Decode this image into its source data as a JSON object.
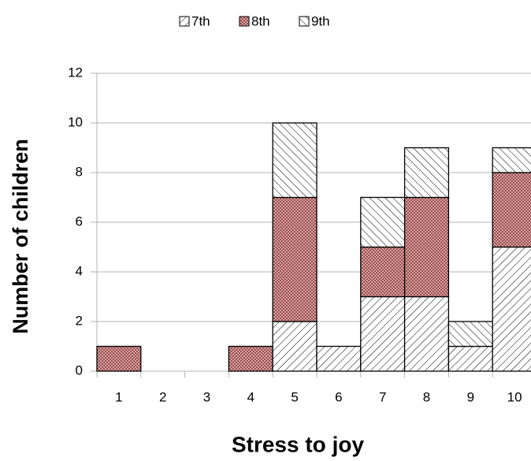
{
  "chart_data": {
    "type": "bar",
    "stacked": true,
    "x_label": "Stress to joy",
    "y_label": "Number of children",
    "categories": [
      "1",
      "2",
      "3",
      "4",
      "5",
      "6",
      "7",
      "8",
      "9",
      "10"
    ],
    "series": [
      {
        "name": "7th",
        "color": "#ffffff",
        "values": [
          0,
          0,
          0,
          0,
          2,
          1,
          3,
          3,
          1,
          5
        ]
      },
      {
        "name": "8th",
        "color": "#e8b4b4",
        "values": [
          1,
          0,
          0,
          1,
          5,
          0,
          2,
          4,
          0,
          3
        ]
      },
      {
        "name": "9th",
        "color": "#ffffff",
        "values": [
          0,
          0,
          0,
          0,
          3,
          0,
          2,
          2,
          1,
          1
        ]
      }
    ],
    "ylim": [
      0,
      12
    ],
    "yticks": [
      0,
      2,
      4,
      6,
      8,
      10,
      12
    ],
    "grid": true,
    "legend": "top"
  }
}
